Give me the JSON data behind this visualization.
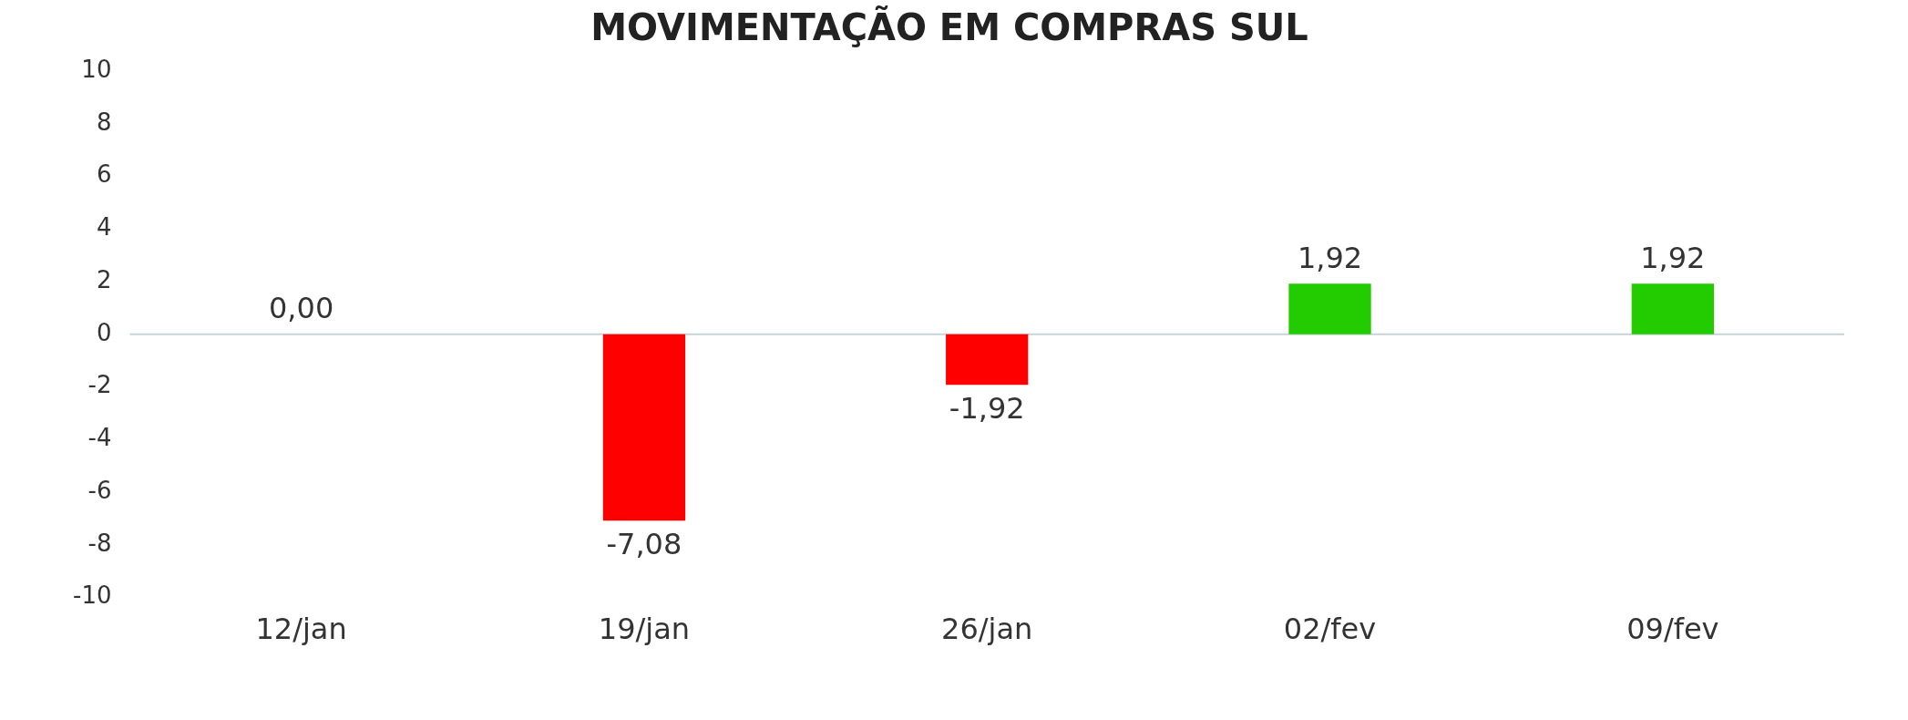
{
  "chart_data": {
    "type": "bar",
    "title": "MOVIMENTAÇÃO EM COMPRAS SUL",
    "categories": [
      "12/jan",
      "19/jan",
      "26/jan",
      "02/fev",
      "09/fev"
    ],
    "values": [
      0,
      -7.08,
      -1.92,
      1.92,
      1.92
    ],
    "colors": [
      "#22cc00",
      "#ff0000",
      "#ff0000",
      "#22cc00",
      "#22cc00"
    ],
    "value_labels": [
      "0,00",
      "-7,08",
      "-1,92",
      "1,92",
      "1,92"
    ],
    "ylim": [
      -10,
      10
    ],
    "yticks": [
      -10,
      -8,
      -6,
      -4,
      -2,
      0,
      2,
      4,
      6,
      8,
      10
    ],
    "grid": false,
    "legend": false,
    "ref_lines": [
      {
        "axis": "y",
        "value": 0,
        "color": "#c8d4d4"
      }
    ]
  }
}
